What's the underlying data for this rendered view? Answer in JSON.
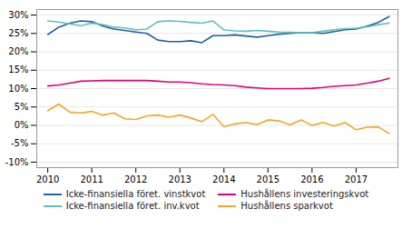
{
  "chart_data": {
    "type": "line",
    "x": [
      2010.0,
      2010.25,
      2010.5,
      2010.75,
      2011.0,
      2011.25,
      2011.5,
      2011.75,
      2012.0,
      2012.25,
      2012.5,
      2012.75,
      2013.0,
      2013.25,
      2013.5,
      2013.75,
      2014.0,
      2014.25,
      2014.5,
      2014.75,
      2015.0,
      2015.25,
      2015.5,
      2015.75,
      2016.0,
      2016.25,
      2016.5,
      2016.75,
      2017.0,
      2017.25,
      2017.5,
      2017.75
    ],
    "series": [
      {
        "name": "Icke-finansiella föret. vinstkvot",
        "color": "#1f5fa6",
        "values": [
          0.247,
          0.267,
          0.278,
          0.284,
          0.282,
          0.27,
          0.262,
          0.258,
          0.254,
          0.25,
          0.232,
          0.228,
          0.228,
          0.23,
          0.225,
          0.244,
          0.244,
          0.246,
          0.243,
          0.24,
          0.244,
          0.248,
          0.25,
          0.252,
          0.252,
          0.25,
          0.255,
          0.26,
          0.262,
          0.27,
          0.28,
          0.296
        ]
      },
      {
        "name": "Hushållens investeringskvot",
        "color": "#e5007d",
        "values": [
          0.107,
          0.11,
          0.115,
          0.12,
          0.121,
          0.122,
          0.122,
          0.122,
          0.122,
          0.122,
          0.12,
          0.118,
          0.118,
          0.116,
          0.113,
          0.111,
          0.11,
          0.108,
          0.104,
          0.102,
          0.1,
          0.1,
          0.1,
          0.1,
          0.101,
          0.103,
          0.106,
          0.108,
          0.11,
          0.115,
          0.12,
          0.128
        ]
      },
      {
        "name": "Icke-finansiella föret. inv.kvot",
        "color": "#5bbfbf",
        "values": [
          0.284,
          0.281,
          0.276,
          0.271,
          0.278,
          0.274,
          0.267,
          0.265,
          0.26,
          0.262,
          0.282,
          0.284,
          0.283,
          0.28,
          0.278,
          0.284,
          0.26,
          0.257,
          0.256,
          0.258,
          0.256,
          0.254,
          0.253,
          0.252,
          0.252,
          0.256,
          0.26,
          0.263,
          0.264,
          0.268,
          0.274,
          0.278
        ]
      },
      {
        "name": "Hushållens sparkvot",
        "color": "#f5a623",
        "values": [
          0.04,
          0.058,
          0.036,
          0.034,
          0.038,
          0.028,
          0.034,
          0.018,
          0.016,
          0.026,
          0.028,
          0.022,
          0.028,
          0.02,
          0.01,
          0.03,
          -0.004,
          0.004,
          0.008,
          0.002,
          0.015,
          0.012,
          0.002,
          0.015,
          0.0,
          0.008,
          -0.002,
          0.008,
          -0.012,
          -0.005,
          -0.004,
          -0.022
        ]
      }
    ],
    "xlim": [
      2009.75,
      2017.95
    ],
    "xticks": [
      2010,
      2011,
      2012,
      2013,
      2014,
      2015,
      2016,
      2017
    ],
    "ylim": [
      -0.115,
      0.315
    ],
    "yticks": [
      {
        "value": -0.1,
        "label": "-10%"
      },
      {
        "value": -0.05,
        "label": "-5%"
      },
      {
        "value": 0.0,
        "label": "0%"
      },
      {
        "value": 0.05,
        "label": "5%"
      },
      {
        "value": 0.1,
        "label": "10%"
      },
      {
        "value": 0.15,
        "label": "15%"
      },
      {
        "value": 0.2,
        "label": "20%"
      },
      {
        "value": 0.25,
        "label": "25%"
      },
      {
        "value": 0.3,
        "label": "30%"
      }
    ],
    "grid": true,
    "legend": "bottom"
  }
}
